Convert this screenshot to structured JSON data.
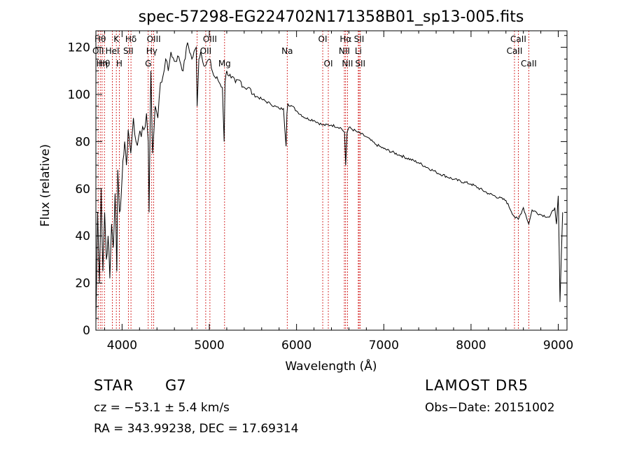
{
  "chart_data": {
    "type": "line",
    "title": "spec-57298-EG224702N171358B01_sp13-005.fits",
    "xlabel": "Wavelength (Å)",
    "ylabel": "Flux (relative)",
    "xlim": [
      3700,
      9100
    ],
    "ylim": [
      0,
      127
    ],
    "xticks": [
      4000,
      5000,
      6000,
      7000,
      8000,
      9000
    ],
    "yticks": [
      0,
      20,
      40,
      60,
      80,
      100,
      120
    ],
    "grid": false,
    "line_color": "#000000",
    "marker_color": "#cc0000",
    "series": [
      {
        "x": [
          3700,
          3720,
          3740,
          3760,
          3780,
          3800,
          3820,
          3840,
          3860,
          3880,
          3900,
          3920,
          3940,
          3950,
          3970,
          3990,
          4010,
          4030,
          4050,
          4070,
          4100,
          4130,
          4160,
          4190,
          4220,
          4250,
          4280,
          4300,
          4310,
          4330,
          4350,
          4380,
          4410,
          4440,
          4470,
          4500,
          4530,
          4560,
          4600,
          4650,
          4700,
          4750,
          4800,
          4850,
          4860,
          4880,
          4900,
          4950,
          5000,
          5050,
          5100,
          5150,
          5170,
          5180,
          5200,
          5250,
          5300,
          5350,
          5400,
          5450,
          5500,
          5600,
          5700,
          5800,
          5850,
          5880,
          5890,
          5900,
          5950,
          6000,
          6100,
          6200,
          6300,
          6400,
          6500,
          6550,
          6563,
          6580,
          6600,
          6700,
          6800,
          6900,
          7000,
          7200,
          7400,
          7600,
          7800,
          8000,
          8200,
          8400,
          8498,
          8542,
          8600,
          8662,
          8700,
          8800,
          8900,
          8960,
          8980,
          9000,
          9020,
          9050
        ],
        "y": [
          3,
          50,
          20,
          60,
          25,
          50,
          30,
          40,
          22,
          45,
          35,
          58,
          25,
          68,
          50,
          57,
          72,
          80,
          70,
          85,
          75,
          90,
          80,
          82,
          82,
          85,
          92,
          80,
          50,
          110,
          75,
          95,
          90,
          105,
          108,
          115,
          110,
          118,
          114,
          116,
          110,
          122,
          115,
          120,
          95,
          115,
          118,
          112,
          115,
          108,
          106,
          103,
          80,
          105,
          110,
          107,
          105,
          106,
          103,
          103,
          100,
          98,
          96,
          94,
          94,
          78,
          92,
          96,
          95,
          93,
          90,
          89,
          87,
          87,
          86,
          84,
          70,
          84,
          86,
          84,
          82,
          79,
          77,
          74,
          71,
          67,
          64,
          62,
          58,
          55,
          48,
          47,
          52,
          45,
          51,
          49,
          48,
          52,
          45,
          57,
          12,
          50
        ]
      }
    ],
    "lines": [
      {
        "wave": 3726,
        "label": "OII",
        "row": 1
      },
      {
        "wave": 3750,
        "label": "Hθ",
        "row": 0
      },
      {
        "wave": 3771,
        "label": "Hη",
        "row": 2
      },
      {
        "wave": 3798,
        "label": "Hθ",
        "row": 2
      },
      {
        "wave": 3889,
        "label": "HeI",
        "row": 1
      },
      {
        "wave": 3934,
        "label": "K",
        "row": 0
      },
      {
        "wave": 3968,
        "label": "H",
        "row": 2
      },
      {
        "wave": 4072,
        "label": "SII",
        "row": 1
      },
      {
        "wave": 4102,
        "label": "Hδ",
        "row": 0
      },
      {
        "wave": 4300,
        "label": "G",
        "row": 2
      },
      {
        "wave": 4340,
        "label": "Hγ",
        "row": 1
      },
      {
        "wave": 4363,
        "label": "OIII",
        "row": 0
      },
      {
        "wave": 4861,
        "label": "",
        "row": 0
      },
      {
        "wave": 4959,
        "label": "OII",
        "row": 1
      },
      {
        "wave": 5007,
        "label": "OIII",
        "row": 0
      },
      {
        "wave": 5175,
        "label": "Mg",
        "row": 2
      },
      {
        "wave": 5893,
        "label": "Na",
        "row": 1
      },
      {
        "wave": 6300,
        "label": "OI",
        "row": 0
      },
      {
        "wave": 6364,
        "label": "OI",
        "row": 2
      },
      {
        "wave": 6548,
        "label": "NII",
        "row": 1
      },
      {
        "wave": 6563,
        "label": "Hα",
        "row": 0
      },
      {
        "wave": 6584,
        "label": "NII",
        "row": 2
      },
      {
        "wave": 6708,
        "label": "Li",
        "row": 1
      },
      {
        "wave": 6717,
        "label": "SII",
        "row": 0
      },
      {
        "wave": 6731,
        "label": "SII",
        "row": 2
      },
      {
        "wave": 8498,
        "label": "CaII",
        "row": 1
      },
      {
        "wave": 8542,
        "label": "CaII",
        "row": 0
      },
      {
        "wave": 8662,
        "label": "CaII",
        "row": 2
      }
    ]
  },
  "info": {
    "class": "STAR",
    "subclass": "G7",
    "survey": "LAMOST DR5",
    "cz": "cz = −53.1 ± 5.4 km/s",
    "obs_date": "Obs−Date: 20151002",
    "coords": "RA = 343.99238, DEC =  17.69314"
  }
}
